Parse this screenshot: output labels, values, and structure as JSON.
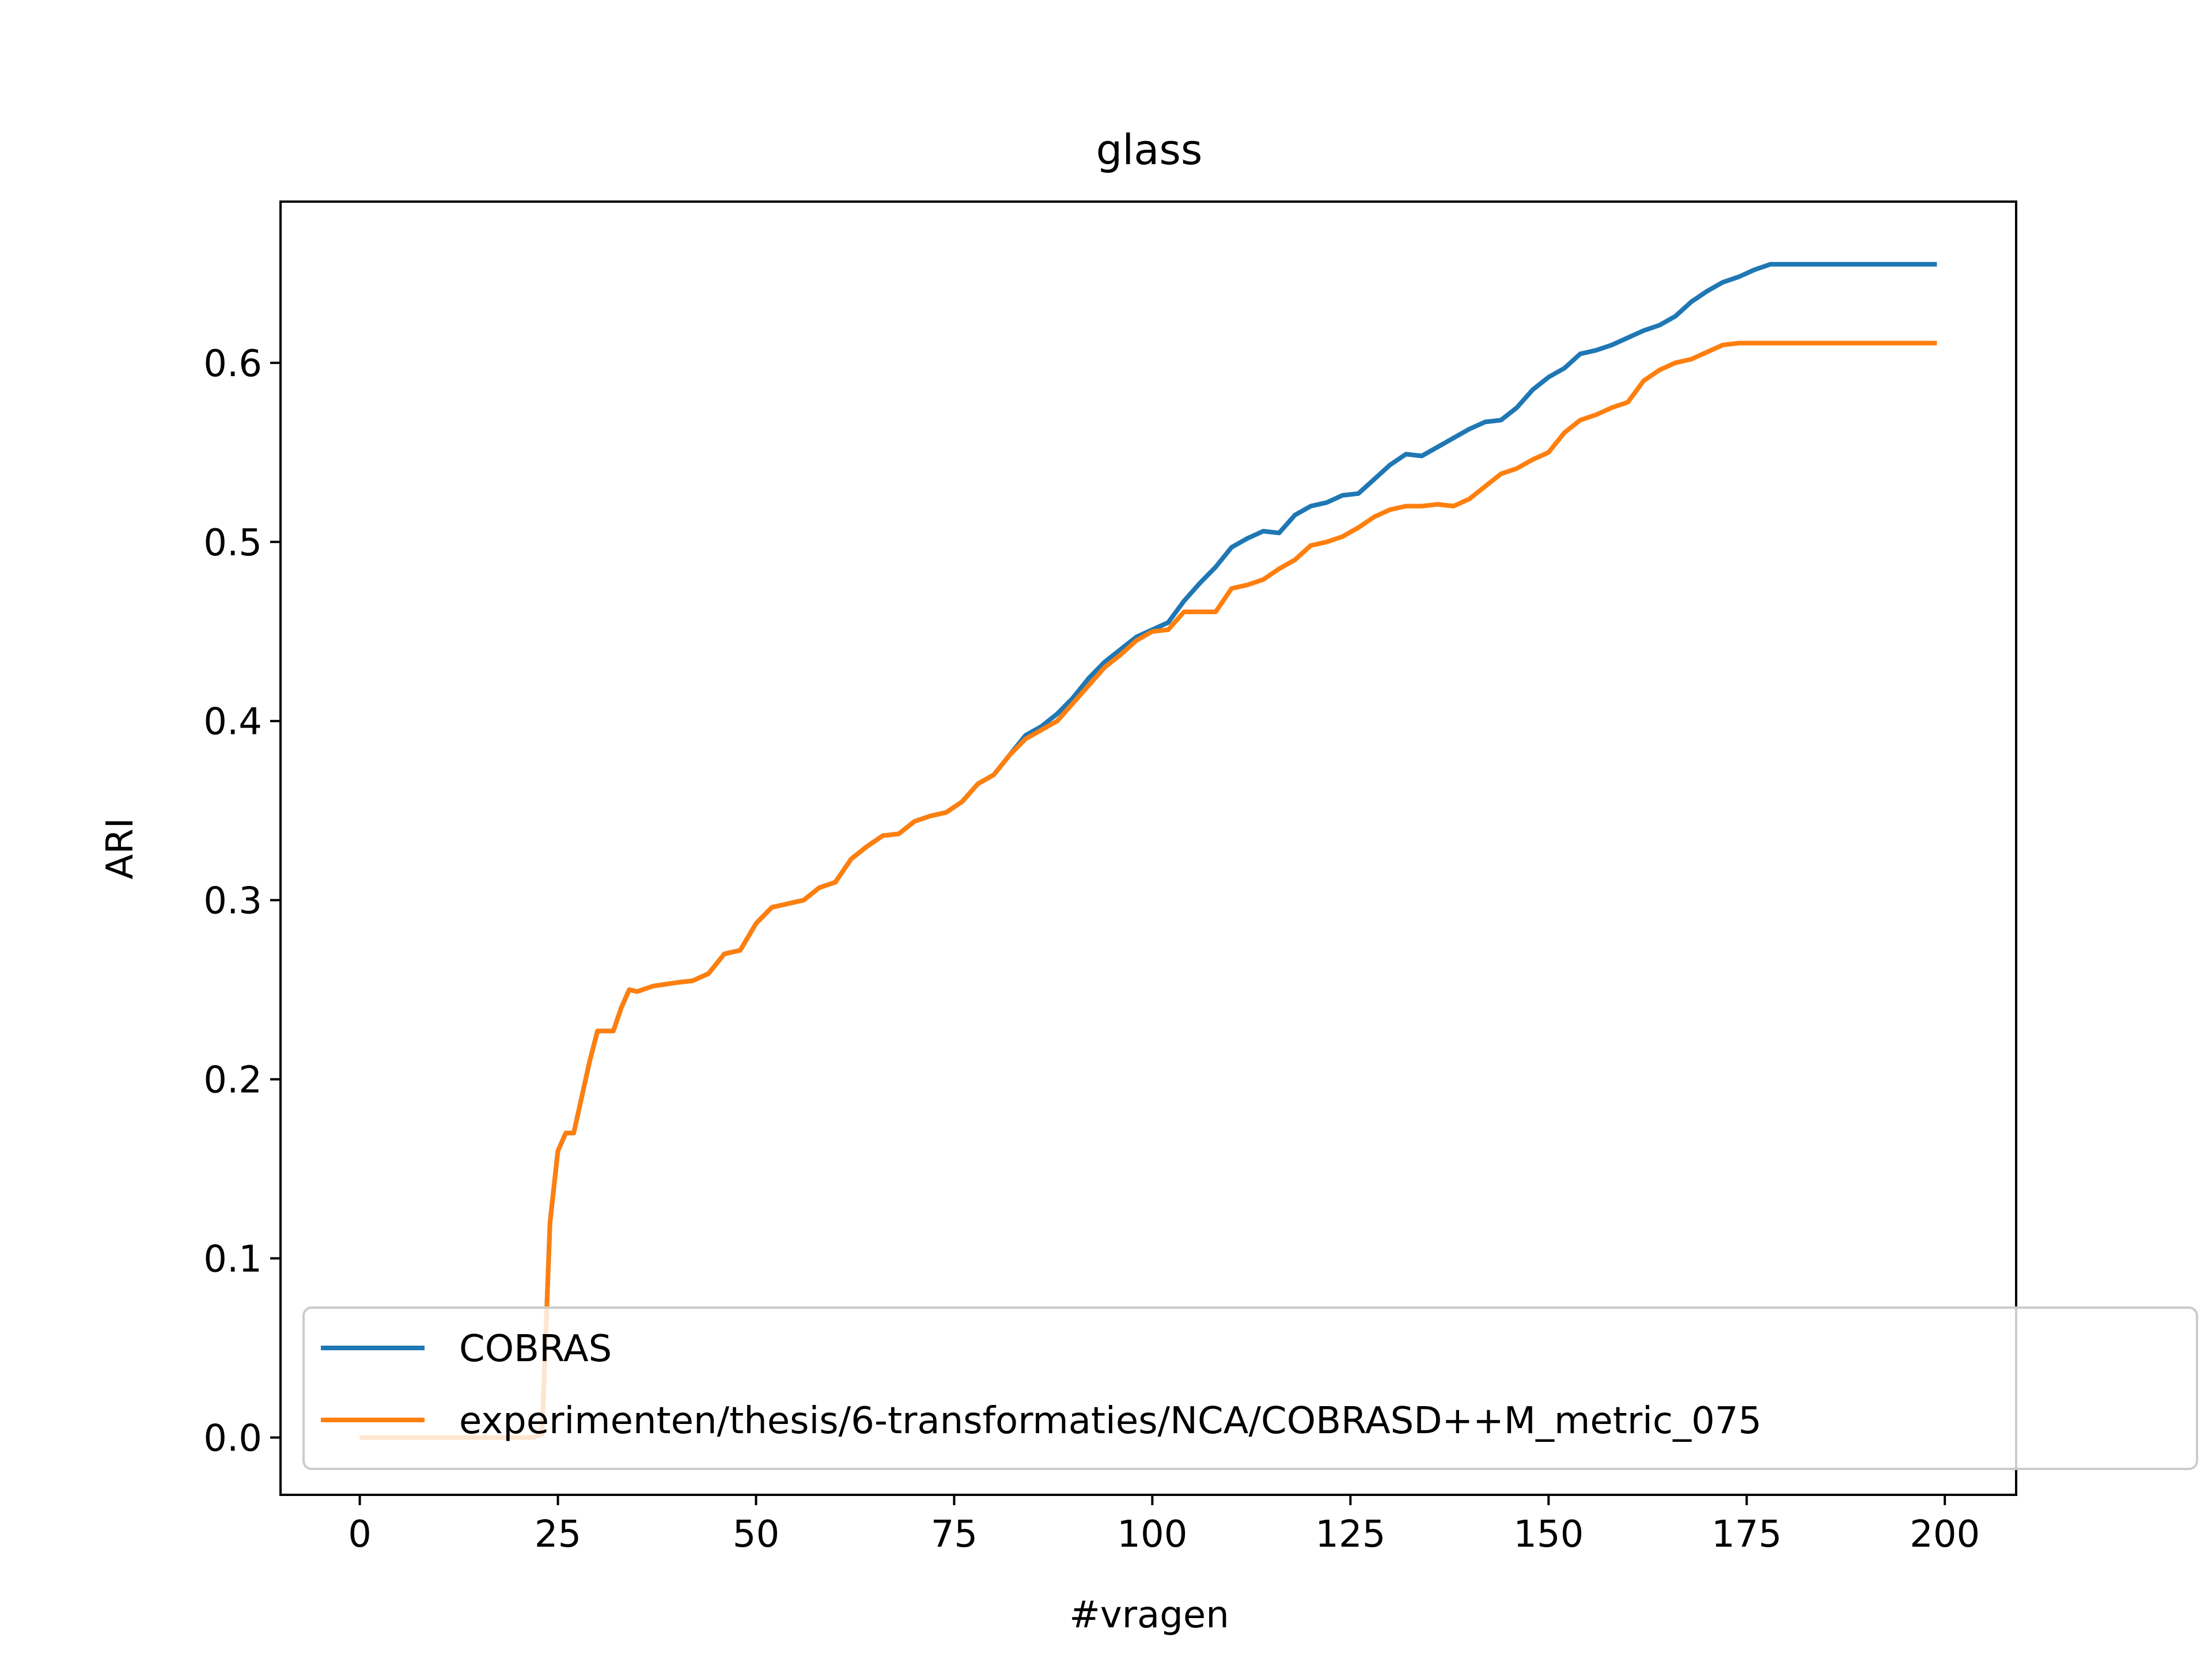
{
  "chart_data": {
    "type": "line",
    "title": "glass",
    "xlabel": "#vragen",
    "ylabel": "ARI",
    "xlim": [
      -10,
      209
    ],
    "ylim": [
      -0.032,
      0.69
    ],
    "xticks": [
      0,
      25,
      50,
      75,
      100,
      125,
      150,
      175,
      200
    ],
    "xtick_labels": [
      "0",
      "25",
      "50",
      "75",
      "100",
      "125",
      "150",
      "175",
      "200"
    ],
    "yticks": [
      0.0,
      0.1,
      0.2,
      0.3,
      0.4,
      0.5,
      0.6
    ],
    "ytick_labels": [
      "0.0",
      "0.1",
      "0.2",
      "0.3",
      "0.4",
      "0.5",
      "0.6"
    ],
    "grid": false,
    "legend_position": "lower-right",
    "series": [
      {
        "name": "COBRAS",
        "color": "#1f77b4",
        "x": [
          0,
          5,
          10,
          15,
          20,
          22,
          23,
          24,
          25,
          26,
          27,
          28,
          29,
          30,
          31,
          32,
          33,
          34,
          35,
          37,
          40,
          42,
          44,
          46,
          48,
          50,
          52,
          54,
          56,
          58,
          60,
          62,
          64,
          66,
          68,
          70,
          72,
          74,
          76,
          78,
          80,
          82,
          84,
          86,
          88,
          90,
          92,
          94,
          96,
          98,
          100,
          102,
          104,
          106,
          108,
          110,
          112,
          114,
          116,
          118,
          120,
          122,
          124,
          126,
          128,
          130,
          132,
          134,
          136,
          138,
          140,
          142,
          144,
          146,
          148,
          150,
          152,
          154,
          156,
          158,
          160,
          162,
          164,
          166,
          168,
          170,
          172,
          174,
          176,
          178,
          180,
          182,
          184,
          186,
          188,
          190,
          192,
          194,
          196,
          198,
          199
        ],
        "y": [
          0.0,
          0.0,
          0.0,
          0.0,
          0.0,
          0.0,
          0.002,
          0.12,
          0.16,
          0.17,
          0.17,
          0.19,
          0.21,
          0.227,
          0.227,
          0.227,
          0.24,
          0.25,
          0.249,
          0.252,
          0.254,
          0.255,
          0.259,
          0.27,
          0.272,
          0.287,
          0.296,
          0.298,
          0.3,
          0.307,
          0.31,
          0.323,
          0.33,
          0.336,
          0.337,
          0.344,
          0.347,
          0.349,
          0.355,
          0.365,
          0.37,
          0.381,
          0.392,
          0.397,
          0.404,
          0.413,
          0.424,
          0.433,
          0.44,
          0.447,
          0.451,
          0.455,
          0.467,
          0.477,
          0.486,
          0.497,
          0.502,
          0.506,
          0.505,
          0.515,
          0.52,
          0.522,
          0.526,
          0.527,
          0.535,
          0.543,
          0.549,
          0.548,
          0.553,
          0.558,
          0.563,
          0.567,
          0.568,
          0.575,
          0.585,
          0.592,
          0.597,
          0.605,
          0.607,
          0.61,
          0.614,
          0.618,
          0.621,
          0.626,
          0.634,
          0.64,
          0.645,
          0.648,
          0.652,
          0.655,
          0.655,
          0.655,
          0.655,
          0.655,
          0.655,
          0.655,
          0.655,
          0.655,
          0.655,
          0.655,
          0.655
        ]
      },
      {
        "name": "experimenten/thesis/6-transformaties/NCA/COBRASD++M_metric_075",
        "color": "#ff7f0e",
        "x": [
          0,
          5,
          10,
          15,
          20,
          22,
          23,
          24,
          25,
          26,
          27,
          28,
          29,
          30,
          31,
          32,
          33,
          34,
          35,
          37,
          40,
          42,
          44,
          46,
          48,
          50,
          52,
          54,
          56,
          58,
          60,
          62,
          64,
          66,
          68,
          70,
          72,
          74,
          76,
          78,
          80,
          82,
          84,
          86,
          88,
          90,
          92,
          94,
          96,
          98,
          100,
          102,
          104,
          106,
          108,
          110,
          112,
          114,
          116,
          118,
          120,
          122,
          124,
          126,
          128,
          130,
          132,
          134,
          136,
          138,
          140,
          142,
          144,
          146,
          148,
          150,
          152,
          154,
          156,
          158,
          160,
          162,
          164,
          166,
          168,
          170,
          172,
          174,
          176,
          178,
          180,
          182,
          184,
          186,
          188,
          190,
          192,
          194,
          196,
          198,
          199
        ],
        "y": [
          0.0,
          0.0,
          0.0,
          0.0,
          0.0,
          0.0,
          0.002,
          0.12,
          0.16,
          0.17,
          0.17,
          0.19,
          0.21,
          0.227,
          0.227,
          0.227,
          0.24,
          0.25,
          0.249,
          0.252,
          0.254,
          0.255,
          0.259,
          0.27,
          0.272,
          0.287,
          0.296,
          0.298,
          0.3,
          0.307,
          0.31,
          0.323,
          0.33,
          0.336,
          0.337,
          0.344,
          0.347,
          0.349,
          0.355,
          0.365,
          0.37,
          0.381,
          0.39,
          0.395,
          0.4,
          0.41,
          0.42,
          0.43,
          0.437,
          0.445,
          0.45,
          0.451,
          0.461,
          0.461,
          0.461,
          0.474,
          0.476,
          0.479,
          0.485,
          0.49,
          0.498,
          0.5,
          0.503,
          0.508,
          0.514,
          0.518,
          0.52,
          0.52,
          0.521,
          0.52,
          0.524,
          0.531,
          0.538,
          0.541,
          0.546,
          0.55,
          0.561,
          0.568,
          0.571,
          0.575,
          0.578,
          0.59,
          0.596,
          0.6,
          0.602,
          0.606,
          0.61,
          0.611,
          0.611,
          0.611,
          0.611,
          0.611,
          0.611,
          0.611,
          0.611,
          0.611,
          0.611,
          0.611,
          0.611,
          0.611,
          0.611
        ]
      }
    ]
  }
}
